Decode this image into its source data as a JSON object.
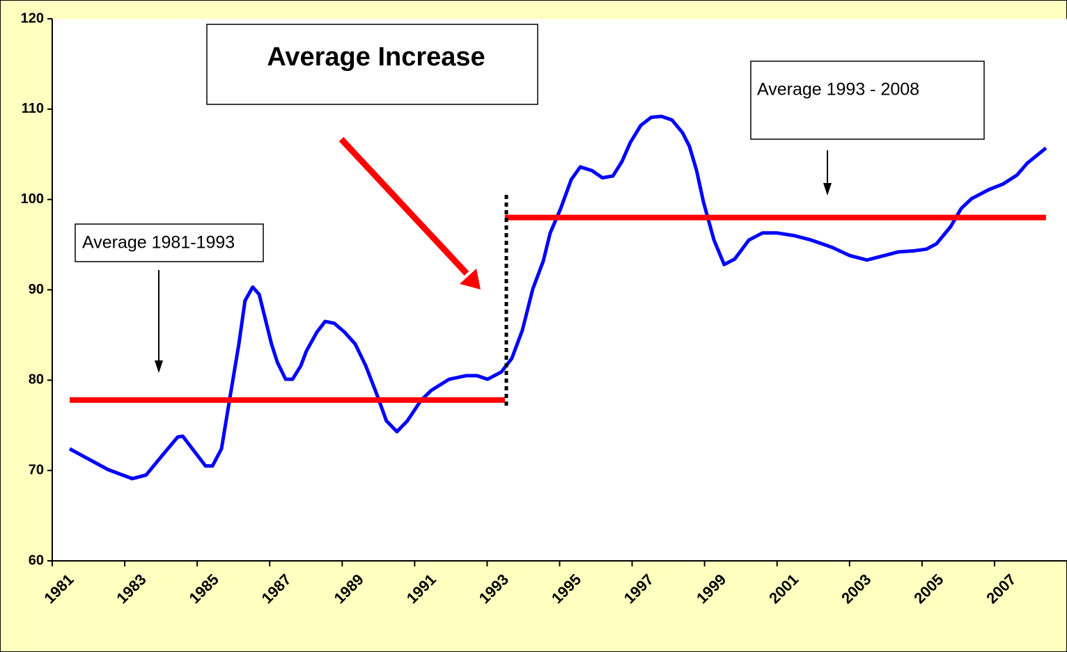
{
  "chart_data": {
    "type": "line",
    "annotations": [
      "Average Increase",
      "Average 1993 - 2008",
      "Average 1981-1993"
    ],
    "xlim": [
      1981,
      2009
    ],
    "xticks": [
      1981,
      1983,
      1985,
      1987,
      1989,
      1991,
      1993,
      1995,
      1997,
      1999,
      2001,
      2003,
      2005,
      2007
    ],
    "ylim": [
      60,
      120
    ],
    "yticks": [
      60,
      70,
      80,
      90,
      100,
      110,
      120
    ],
    "series": [
      {
        "color": "#0000ff",
        "x": [
          1981.48,
          1982.54,
          1983.21,
          1983.59,
          1983.98,
          1984.46,
          1984.6,
          1985.23,
          1985.42,
          1985.67,
          1985.9,
          1986.15,
          1986.32,
          1986.53,
          1986.71,
          1987.05,
          1987.21,
          1987.44,
          1987.63,
          1987.86,
          1988.01,
          1988.3,
          1988.53,
          1988.78,
          1989.07,
          1989.36,
          1989.65,
          1989.94,
          1990.22,
          1990.51,
          1990.8,
          1991.18,
          1991.47,
          1991.95,
          1992.43,
          1992.72,
          1993.01,
          1993.39,
          1993.68,
          1993.97,
          1994.26,
          1994.55,
          1994.74,
          1995.03,
          1995.32,
          1995.57,
          1995.89,
          1996.18,
          1996.47,
          1996.72,
          1996.95,
          1997.24,
          1997.53,
          1997.81,
          1998.1,
          1998.39,
          1998.58,
          1998.78,
          1998.97,
          1999.26,
          1999.54,
          1999.83,
          2000.22,
          2000.6,
          2000.99,
          2001.47,
          2001.95,
          2002.52,
          2003.0,
          2003.48,
          2003.87,
          2004.35,
          2004.74,
          2005.12,
          2005.4,
          2005.79,
          2006.08,
          2006.37,
          2006.85,
          2007.23,
          2007.62,
          2007.9,
          2008.42
        ],
        "values": [
          72.4,
          70.1,
          69.1,
          69.5,
          71.4,
          73.7,
          73.8,
          70.5,
          70.5,
          72.4,
          78.0,
          84.0,
          88.8,
          90.3,
          89.5,
          84.0,
          82.0,
          80.1,
          80.1,
          81.6,
          83.2,
          85.3,
          86.5,
          86.3,
          85.3,
          84.0,
          81.6,
          78.6,
          75.5,
          74.3,
          75.5,
          77.8,
          78.9,
          80.1,
          80.5,
          80.5,
          80.1,
          80.9,
          82.4,
          85.5,
          90.1,
          93.2,
          96.3,
          99.0,
          102.2,
          103.6,
          103.2,
          102.4,
          102.6,
          104.2,
          106.3,
          108.2,
          109.1,
          109.2,
          108.8,
          107.4,
          105.9,
          103.2,
          99.7,
          95.5,
          92.8,
          93.4,
          95.5,
          96.3,
          96.3,
          96.0,
          95.5,
          94.7,
          93.8,
          93.3,
          93.7,
          94.2,
          94.3,
          94.5,
          95.1,
          97.0,
          99.0,
          100.1,
          101.1,
          101.7,
          102.7,
          104.0,
          105.7
        ]
      },
      {
        "color": "#ff0000",
        "x": [
          1981.48,
          1993.49
        ],
        "values": [
          77.8,
          77.8
        ]
      },
      {
        "color": "#ff0000",
        "x": [
          1993.49,
          2008.42
        ],
        "values": [
          98.0,
          98.0
        ]
      }
    ]
  }
}
